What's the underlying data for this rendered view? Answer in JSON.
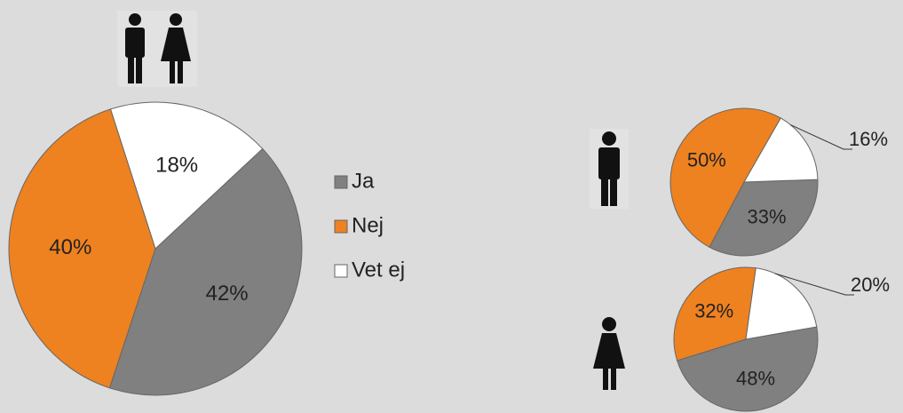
{
  "chart_data": [
    {
      "type": "pie",
      "categories": [
        "Ja",
        "Nej",
        "Vet ej"
      ],
      "values": [
        42,
        40,
        18
      ],
      "value_labels": [
        "42%",
        "40%",
        "18%"
      ],
      "colors": [
        "#808080",
        "#ee8220",
        "#ffffff"
      ],
      "legend": "right"
    },
    {
      "type": "pie",
      "values": [
        33,
        50,
        16
      ],
      "value_labels": [
        "33%",
        "50%",
        "16%"
      ],
      "colors": [
        "#808080",
        "#ee8220",
        "#ffffff"
      ]
    },
    {
      "type": "pie",
      "values": [
        48,
        32,
        20
      ],
      "value_labels": [
        "48%",
        "32%",
        "20%"
      ],
      "colors": [
        "#808080",
        "#ee8220",
        "#ffffff"
      ]
    }
  ]
}
